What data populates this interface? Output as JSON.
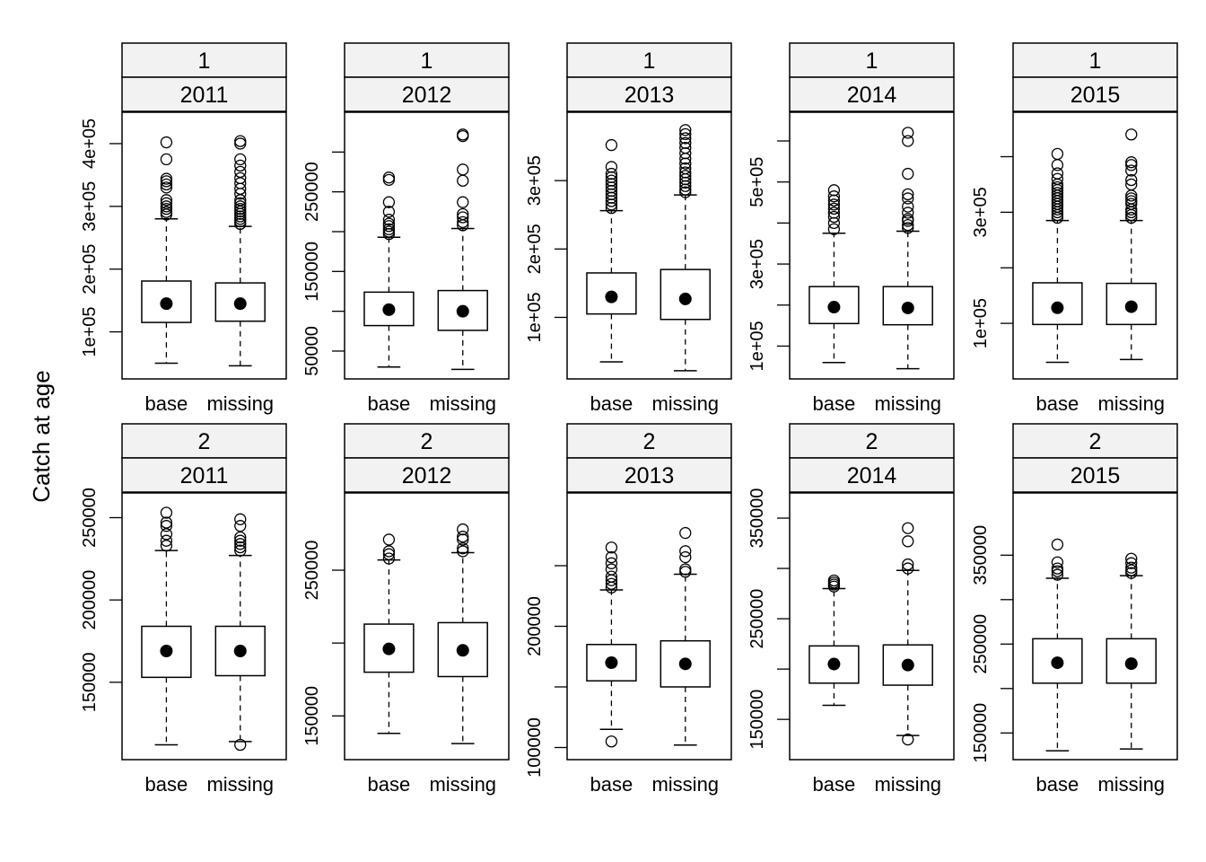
{
  "figure": {
    "ylabel": "Catch at age"
  },
  "colors": {
    "strip_fill": "#f2f2f2",
    "stroke": "#000000",
    "background": "#ffffff"
  },
  "chart_data": [
    {
      "type": "box",
      "age": "1",
      "year": "2011",
      "categories": [
        "base",
        "missing"
      ],
      "yticks": [
        100000,
        200000,
        300000,
        400000
      ],
      "ytick_labels": [
        "1e+05",
        "2e+05",
        "3e+05",
        "4e+05"
      ],
      "ylim": [
        25000,
        450000
      ],
      "boxes": [
        {
          "name": "base",
          "whisker_low": 50000,
          "q1": 115000,
          "median": 145000,
          "q3": 181000,
          "whisker_high": 280000,
          "outliers": [
            287000,
            291000,
            296000,
            300000,
            305000,
            310000,
            330000,
            335000,
            340000,
            344000,
            375000,
            402000
          ]
        },
        {
          "name": "missing",
          "whisker_low": 46000,
          "q1": 117000,
          "median": 145000,
          "q3": 178000,
          "whisker_high": 268000,
          "outliers": [
            272000,
            276000,
            280000,
            284000,
            288000,
            292000,
            296000,
            300000,
            305000,
            310000,
            320000,
            328000,
            337000,
            345000,
            355000,
            365000,
            375000,
            400000,
            404000
          ]
        }
      ]
    },
    {
      "type": "box",
      "age": "1",
      "year": "2012",
      "categories": [
        "base",
        "missing"
      ],
      "yticks": [
        50000,
        100000,
        150000,
        200000,
        250000,
        300000
      ],
      "ytick_labels": [
        "50000",
        "",
        "150000",
        "",
        "250000",
        ""
      ],
      "ylim": [
        15000,
        350000
      ],
      "boxes": [
        {
          "name": "base",
          "whisker_low": 30000,
          "q1": 82000,
          "median": 102000,
          "q3": 124000,
          "whisker_high": 193000,
          "outliers": [
            197000,
            200000,
            203000,
            207000,
            210000,
            215000,
            225000,
            237000,
            265000,
            268000
          ]
        },
        {
          "name": "missing",
          "whisker_low": 27000,
          "q1": 76000,
          "median": 100000,
          "q3": 126000,
          "whisker_high": 204000,
          "outliers": [
            208000,
            212000,
            218000,
            222000,
            237000,
            264000,
            278000,
            320000,
            322000
          ]
        }
      ]
    },
    {
      "type": "box",
      "age": "1",
      "year": "2013",
      "categories": [
        "base",
        "missing"
      ],
      "yticks": [
        100000,
        200000,
        300000
      ],
      "ytick_labels": [
        "1e+05",
        "2e+05",
        "3e+05"
      ],
      "ylim": [
        10000,
        400000
      ],
      "boxes": [
        {
          "name": "base",
          "whisker_low": 35000,
          "q1": 105000,
          "median": 130000,
          "q3": 165000,
          "whisker_high": 256000,
          "outliers": [
            260000,
            265000,
            270000,
            275000,
            280000,
            285000,
            290000,
            295000,
            300000,
            305000,
            310000,
            320000,
            352000
          ]
        },
        {
          "name": "missing",
          "whisker_low": 22000,
          "q1": 97000,
          "median": 127000,
          "q3": 170000,
          "whisker_high": 279000,
          "outliers": [
            283000,
            287000,
            292000,
            297000,
            302000,
            307000,
            312000,
            318000,
            325000,
            332000,
            340000,
            348000,
            355000,
            362000,
            368000,
            374000
          ]
        }
      ]
    },
    {
      "type": "box",
      "age": "1",
      "year": "2014",
      "categories": [
        "base",
        "missing"
      ],
      "yticks": [
        100000,
        200000,
        300000,
        400000,
        500000,
        600000
      ],
      "ytick_labels": [
        "1e+05",
        "",
        "3e+05",
        "",
        "5e+05",
        ""
      ],
      "ylim": [
        20000,
        670000
      ],
      "boxes": [
        {
          "name": "base",
          "whisker_low": 60000,
          "q1": 155000,
          "median": 195000,
          "q3": 245000,
          "whisker_high": 375000,
          "outliers": [
            385000,
            400000,
            415000,
            425000,
            435000,
            445000,
            455000,
            465000,
            480000
          ]
        },
        {
          "name": "missing",
          "whisker_low": 45000,
          "q1": 152000,
          "median": 193000,
          "q3": 245000,
          "whisker_high": 380000,
          "outliers": [
            388000,
            395000,
            405000,
            410000,
            425000,
            440000,
            460000,
            470000,
            520000,
            600000,
            620000
          ]
        }
      ]
    },
    {
      "type": "box",
      "age": "1",
      "year": "2015",
      "categories": [
        "base",
        "missing"
      ],
      "yticks": [
        100000,
        200000,
        300000,
        400000
      ],
      "ytick_labels": [
        "1e+05",
        "",
        "3e+05",
        ""
      ],
      "ylim": [
        0,
        480000
      ],
      "boxes": [
        {
          "name": "base",
          "whisker_low": 30000,
          "q1": 98000,
          "median": 128000,
          "q3": 173000,
          "whisker_high": 285000,
          "outliers": [
            290000,
            295000,
            300000,
            305000,
            310000,
            315000,
            320000,
            325000,
            330000,
            335000,
            340000,
            345000,
            350000,
            360000,
            370000,
            385000,
            405000
          ]
        },
        {
          "name": "missing",
          "whisker_low": 35000,
          "q1": 98000,
          "median": 130000,
          "q3": 172000,
          "whisker_high": 285000,
          "outliers": [
            290000,
            295000,
            300000,
            305000,
            315000,
            320000,
            325000,
            330000,
            350000,
            358000,
            375000,
            385000,
            390000,
            440000
          ]
        }
      ]
    },
    {
      "type": "box",
      "age": "2",
      "year": "2011",
      "categories": [
        "base",
        "missing"
      ],
      "yticks": [
        150000,
        200000,
        250000
      ],
      "ytick_labels": [
        "150000",
        "200000",
        "250000"
      ],
      "ylim": [
        103000,
        265000
      ],
      "boxes": [
        {
          "name": "base",
          "whisker_low": 112000,
          "q1": 153000,
          "median": 169000,
          "q3": 184000,
          "whisker_high": 230000,
          "outliers": [
            233000,
            236000,
            240000,
            245000,
            247000,
            253000
          ]
        },
        {
          "name": "missing",
          "whisker_low": 114000,
          "q1": 154000,
          "median": 169000,
          "q3": 184000,
          "whisker_high": 227000,
          "outliers": [
            230000,
            232000,
            234000,
            236000,
            238000,
            245000,
            249000,
            112000
          ]
        }
      ]
    },
    {
      "type": "box",
      "age": "2",
      "year": "2012",
      "categories": [
        "base",
        "missing"
      ],
      "yticks": [
        150000,
        200000,
        250000
      ],
      "ytick_labels": [
        "150000",
        "",
        "250000"
      ],
      "ylim": [
        120000,
        303000
      ],
      "boxes": [
        {
          "name": "base",
          "whisker_low": 138000,
          "q1": 180000,
          "median": 196000,
          "q3": 213000,
          "whisker_high": 257000,
          "outliers": [
            258000,
            261000,
            263000,
            271000
          ]
        },
        {
          "name": "missing",
          "whisker_low": 131000,
          "q1": 177000,
          "median": 195000,
          "q3": 214000,
          "whisker_high": 262000,
          "outliers": [
            263000,
            265000,
            271000,
            273000,
            278000
          ]
        }
      ]
    },
    {
      "type": "box",
      "age": "2",
      "year": "2013",
      "categories": [
        "base",
        "missing"
      ],
      "yticks": [
        100000,
        150000,
        200000,
        250000
      ],
      "ytick_labels": [
        "100000",
        "",
        "200000",
        ""
      ],
      "ylim": [
        90000,
        310000
      ],
      "boxes": [
        {
          "name": "base",
          "whisker_low": 115000,
          "q1": 155000,
          "median": 170000,
          "q3": 185000,
          "whisker_high": 230000,
          "outliers": [
            232000,
            235000,
            238000,
            241000,
            247000,
            252000,
            257000,
            265000,
            105000
          ]
        },
        {
          "name": "missing",
          "whisker_low": 102000,
          "q1": 150000,
          "median": 169000,
          "q3": 188000,
          "whisker_high": 243000,
          "outliers": [
            245000,
            247000,
            257000,
            262000,
            277000
          ]
        }
      ]
    },
    {
      "type": "box",
      "age": "2",
      "year": "2014",
      "categories": [
        "base",
        "missing"
      ],
      "yticks": [
        150000,
        200000,
        250000,
        300000,
        350000
      ],
      "ytick_labels": [
        "150000",
        "",
        "250000",
        "",
        "350000"
      ],
      "ylim": [
        110000,
        375000
      ],
      "boxes": [
        {
          "name": "base",
          "whisker_low": 164000,
          "q1": 186000,
          "median": 205000,
          "q3": 223000,
          "whisker_high": 280000,
          "outliers": [
            282000,
            284000,
            286000,
            288000
          ]
        },
        {
          "name": "missing",
          "whisker_low": 134000,
          "q1": 184000,
          "median": 204000,
          "q3": 224000,
          "whisker_high": 298000,
          "outliers": [
            300000,
            304000,
            327000,
            340000,
            130000
          ]
        }
      ]
    },
    {
      "type": "box",
      "age": "2",
      "year": "2015",
      "categories": [
        "base",
        "missing"
      ],
      "yticks": [
        150000,
        200000,
        250000,
        300000,
        350000
      ],
      "ytick_labels": [
        "150000",
        "",
        "250000",
        "",
        "350000"
      ],
      "ylim": [
        120000,
        420000
      ],
      "boxes": [
        {
          "name": "base",
          "whisker_low": 130000,
          "q1": 206000,
          "median": 229000,
          "q3": 256000,
          "whisker_high": 324000,
          "outliers": [
            328000,
            332000,
            335000,
            342000,
            362000
          ]
        },
        {
          "name": "missing",
          "whisker_low": 132000,
          "q1": 206000,
          "median": 228000,
          "q3": 256000,
          "whisker_high": 327000,
          "outliers": [
            330000,
            333000,
            336000,
            341000,
            346000
          ]
        }
      ]
    }
  ]
}
